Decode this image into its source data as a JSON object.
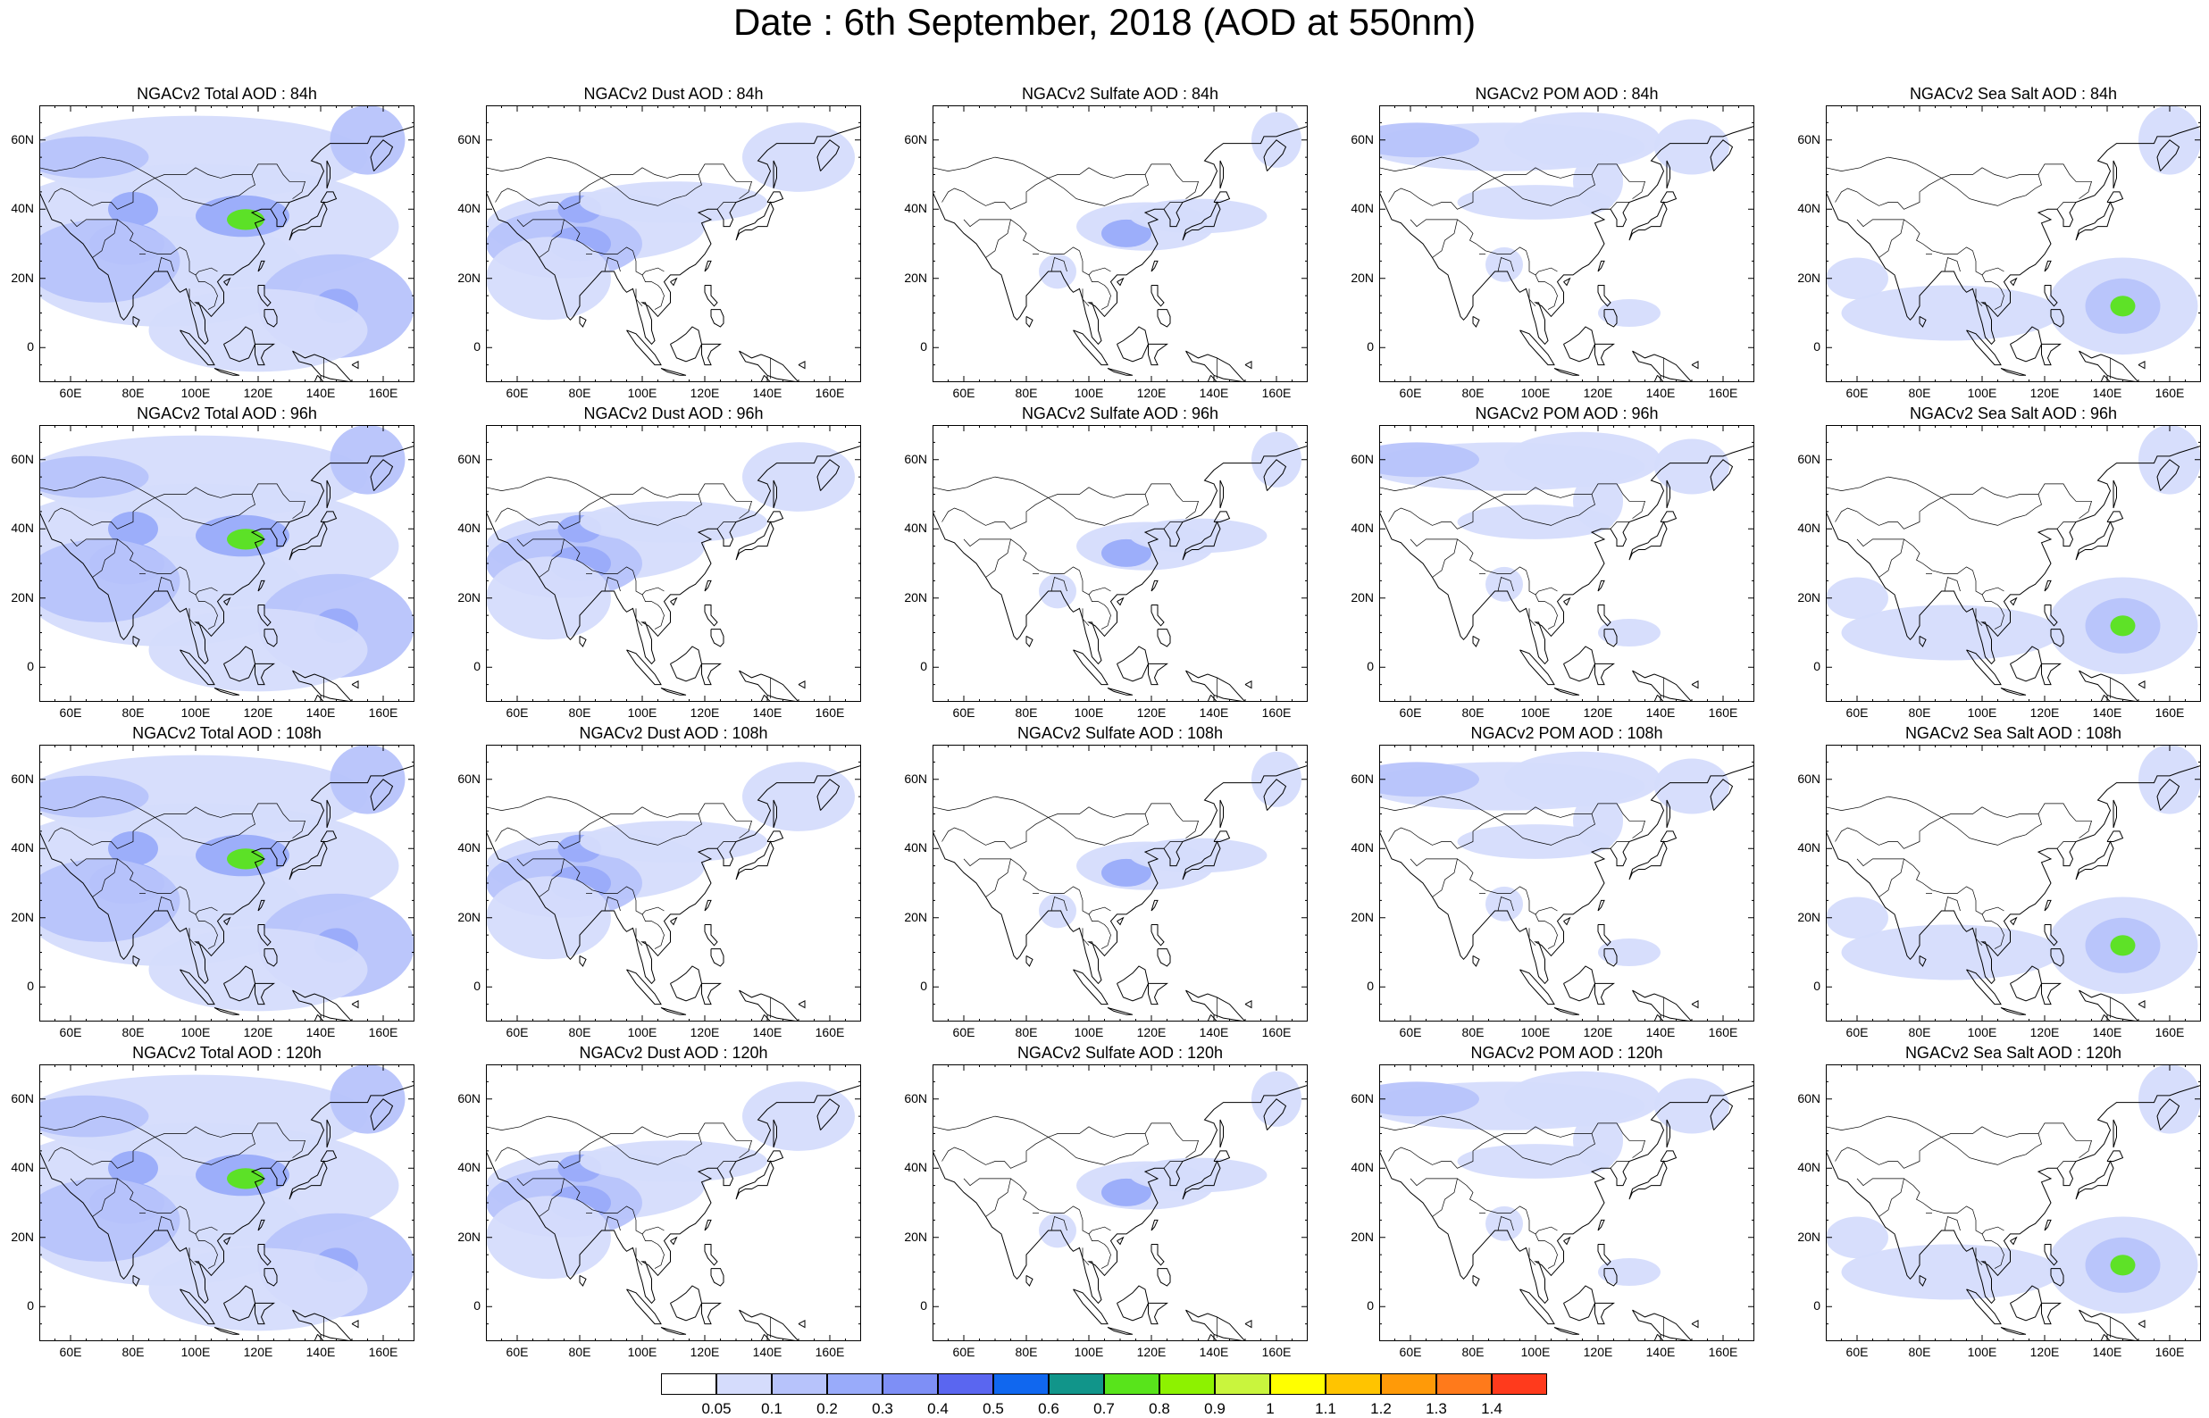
{
  "title": "Date : 6th September, 2018 (AOD at 550nm)",
  "x_tick_labels": [
    "60E",
    "80E",
    "100E",
    "120E",
    "140E",
    "160E"
  ],
  "y_tick_labels": [
    "60N",
    "40N",
    "20N",
    "0"
  ],
  "panels": [
    {
      "title": "NGACv2 Total AOD : 84h",
      "species": "total",
      "lead": "84h"
    },
    {
      "title": "NGACv2 Dust AOD : 84h",
      "species": "dust",
      "lead": "84h"
    },
    {
      "title": "NGACv2 Sulfate AOD : 84h",
      "species": "sulfate",
      "lead": "84h"
    },
    {
      "title": "NGACv2 POM AOD : 84h",
      "species": "pom",
      "lead": "84h"
    },
    {
      "title": "NGACv2 Sea Salt AOD : 84h",
      "species": "seasalt",
      "lead": "84h"
    },
    {
      "title": "NGACv2 Total AOD : 96h",
      "species": "total",
      "lead": "96h"
    },
    {
      "title": "NGACv2 Dust AOD : 96h",
      "species": "dust",
      "lead": "96h"
    },
    {
      "title": "NGACv2 Sulfate AOD : 96h",
      "species": "sulfate",
      "lead": "96h"
    },
    {
      "title": "NGACv2 POM AOD : 96h",
      "species": "pom",
      "lead": "96h"
    },
    {
      "title": "NGACv2 Sea Salt AOD : 96h",
      "species": "seasalt",
      "lead": "96h"
    },
    {
      "title": "NGACv2 Total AOD : 108h",
      "species": "total",
      "lead": "108h"
    },
    {
      "title": "NGACv2 Dust AOD : 108h",
      "species": "dust",
      "lead": "108h"
    },
    {
      "title": "NGACv2 Sulfate AOD : 108h",
      "species": "sulfate",
      "lead": "108h"
    },
    {
      "title": "NGACv2 POM AOD : 108h",
      "species": "pom",
      "lead": "108h"
    },
    {
      "title": "NGACv2 Sea Salt AOD : 108h",
      "species": "seasalt",
      "lead": "108h"
    },
    {
      "title": "NGACv2 Total AOD : 120h",
      "species": "total",
      "lead": "120h"
    },
    {
      "title": "NGACv2 Dust AOD : 120h",
      "species": "dust",
      "lead": "120h"
    },
    {
      "title": "NGACv2 Sulfate AOD : 120h",
      "species": "sulfate",
      "lead": "120h"
    },
    {
      "title": "NGACv2 POM AOD : 120h",
      "species": "pom",
      "lead": "120h"
    },
    {
      "title": "NGACv2 Sea Salt  AOD : 120h",
      "species": "seasalt",
      "lead": "120h"
    }
  ],
  "colorbar": {
    "colors": [
      "#ffffff",
      "#d5dcfc",
      "#b7c3fb",
      "#99abfa",
      "#7e8ff6",
      "#5a66f0",
      "#1067ef",
      "#11958a",
      "#58e41b",
      "#8df200",
      "#c9f53d",
      "#ffff00",
      "#ffc400",
      "#ff9a08",
      "#ff7a1b",
      "#ff3a1c"
    ],
    "labels": [
      "0.05",
      "0.1",
      "0.2",
      "0.3",
      "0.4",
      "0.5",
      "0.6",
      "0.7",
      "0.8",
      "0.9",
      "1",
      "1.1",
      "1.2",
      "1.3",
      "1.4"
    ]
  }
}
